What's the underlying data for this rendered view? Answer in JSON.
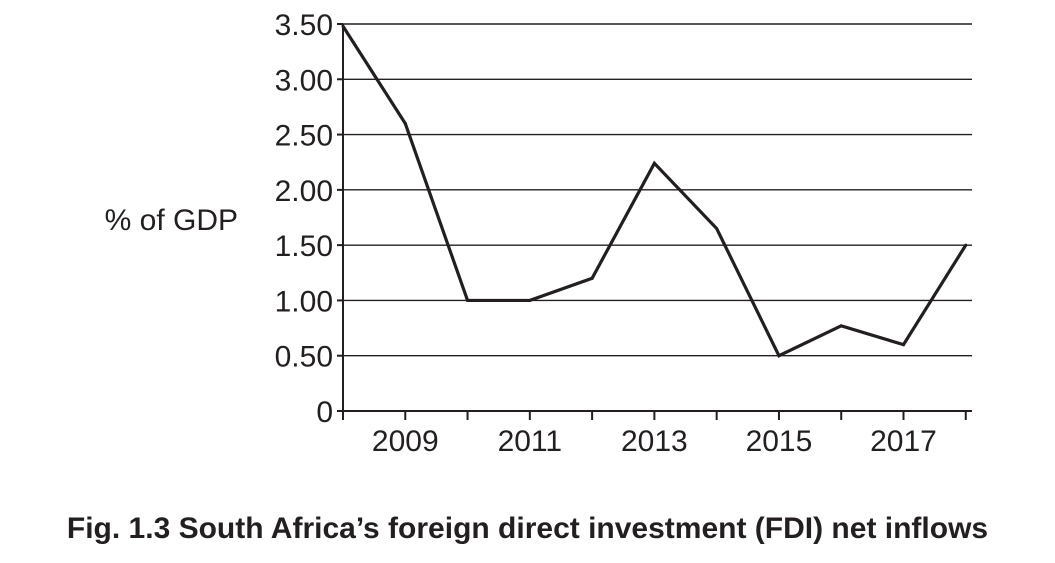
{
  "caption": "Fig. 1.3 South Africa’s foreign direct investment (FDI) net inflows",
  "chart_data": {
    "type": "line",
    "title": "Fig. 1.3 South Africa’s foreign direct investment (FDI) net inflows",
    "ylabel": "% of GDP",
    "xlabel": "",
    "x": [
      2008,
      2009,
      2010,
      2011,
      2012,
      2013,
      2014,
      2015,
      2016,
      2017,
      2018
    ],
    "values": [
      3.48,
      2.6,
      1.0,
      1.0,
      1.2,
      2.24,
      1.65,
      0.5,
      0.77,
      0.6,
      1.5
    ],
    "x_tick_labels": [
      "2009",
      "2011",
      "2013",
      "2015",
      "2017"
    ],
    "x_tick_label_years": [
      2009,
      2011,
      2013,
      2015,
      2017
    ],
    "y_tick_labels": [
      "0",
      "0.50",
      "1.00",
      "1.50",
      "2.00",
      "2.50",
      "3.00",
      "3.50"
    ],
    "y_tick_values": [
      0,
      0.5,
      1.0,
      1.5,
      2.0,
      2.5,
      3.0,
      3.5
    ],
    "xlim": [
      2008,
      2018.1
    ],
    "ylim": [
      0,
      3.5
    ],
    "grid": "horizontal",
    "legend": "none",
    "colors": {
      "line": "#231f20",
      "grid": "#231f20",
      "text": "#231f20"
    }
  }
}
